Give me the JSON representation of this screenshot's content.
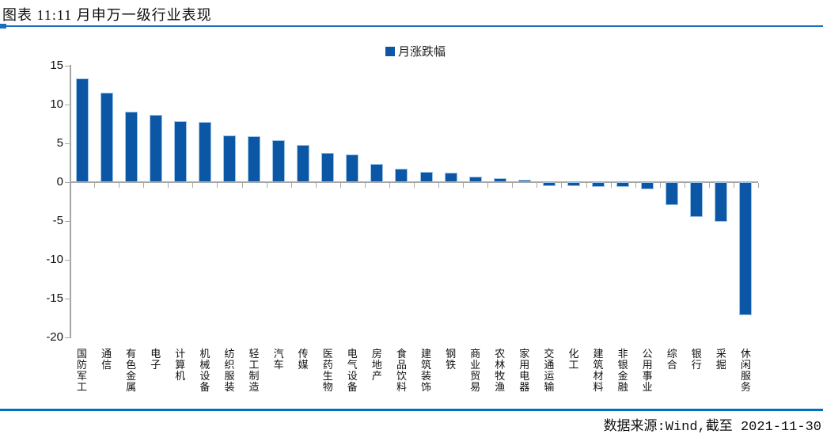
{
  "figure": {
    "title": "图表 11:11 月申万一级行业表现",
    "source_note": "数据来源:Wind,截至 2021-11-30"
  },
  "colors": {
    "bar": "#0c57a5",
    "bar_edge": "#9dc3e6",
    "axis": "#a6a6a6",
    "accent_rule_top": "#1a6ebe",
    "accent_rule_bottom": "#0070c0"
  },
  "chart_data": {
    "type": "bar",
    "title": "图表 11:11 月申万一级行业表现",
    "legend": [
      "月涨跌幅"
    ],
    "legend_position": "top-center",
    "grid": false,
    "ylim": [
      -20,
      15
    ],
    "yticks": [
      15,
      10,
      5,
      0,
      -5,
      -10,
      -15,
      -20
    ],
    "categories": [
      "国防军工",
      "通信",
      "有色金属",
      "电子",
      "计算机",
      "机械设备",
      "纺织服装",
      "轻工制造",
      "汽车",
      "传媒",
      "医药生物",
      "电气设备",
      "房地产",
      "食品饮料",
      "建筑装饰",
      "钢铁",
      "商业贸易",
      "农林牧渔",
      "家用电器",
      "交通运输",
      "化工",
      "建筑材料",
      "非银金融",
      "公用事业",
      "综合",
      "银行",
      "采掘",
      "休闲服务"
    ],
    "values": [
      13.1,
      11.3,
      8.9,
      8.5,
      7.6,
      7.5,
      5.8,
      5.7,
      5.2,
      4.6,
      3.6,
      3.4,
      2.1,
      1.5,
      1.1,
      1.0,
      0.5,
      0.3,
      0.1,
      -0.3,
      -0.3,
      -0.4,
      -0.4,
      -0.7,
      -2.8,
      -4.3,
      -4.9,
      -16.9
    ],
    "series_name": "月涨跌幅",
    "xlabel": "",
    "ylabel": ""
  }
}
